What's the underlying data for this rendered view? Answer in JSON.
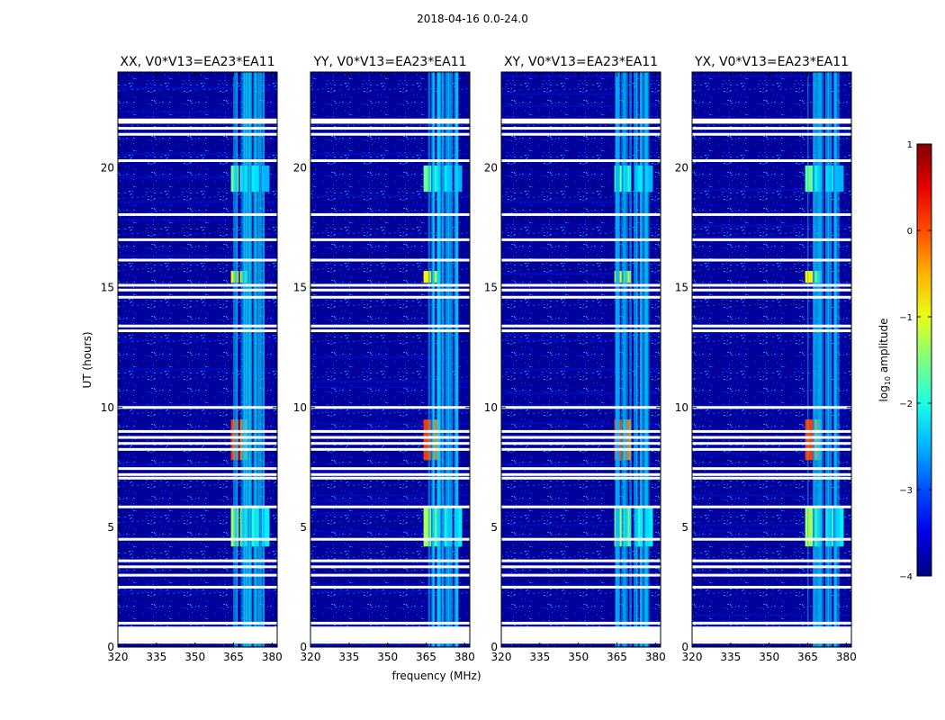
{
  "figure": {
    "suptitle": "2018-04-16 0.0-24.0"
  },
  "chart_data": {
    "type": "heatmap",
    "panels": [
      {
        "title": "XX, V0*V13=EA23*EA11"
      },
      {
        "title": "YY, V0*V13=EA23*EA11"
      },
      {
        "title": "XY, V0*V13=EA23*EA11"
      },
      {
        "title": "YX, V0*V13=EA23*EA11"
      }
    ],
    "xlabel": "frequency (MHz)",
    "ylabel": "UT (hours)",
    "xlim": [
      320,
      382
    ],
    "ylim": [
      0,
      24
    ],
    "xticks": [
      320,
      335,
      350,
      365,
      380
    ],
    "yticks": [
      0,
      5,
      10,
      15,
      20
    ],
    "colorbar": {
      "label": "log10 amplitude",
      "label_main": "log",
      "label_sub": "10",
      "label_rest": " amplitude",
      "range": [
        -4,
        1
      ],
      "ticks": [
        -4,
        -3,
        -2,
        -1,
        0,
        1
      ],
      "tick_labels": [
        "−4",
        "−3",
        "−2",
        "−1",
        "0",
        "1"
      ],
      "colormap": "jet"
    },
    "flagged_hours": [
      0.2,
      0.55,
      0.8,
      1.0,
      2.5,
      3.0,
      3.35,
      3.6,
      4.5,
      5.85,
      7.05,
      7.2,
      7.45,
      8.25,
      8.5,
      8.75,
      9.0,
      10.0,
      13.2,
      13.4,
      14.6,
      14.9,
      15.1,
      16.15,
      17.0,
      18.05,
      20.3,
      21.4,
      21.65,
      21.9,
      22.0
    ],
    "features": [
      {
        "name": "rfi-band-5h",
        "f_start": 364,
        "f_end": 381,
        "t_start": 4.2,
        "t_end": 5.8,
        "level": -1.3
      },
      {
        "name": "rfi-band-8.5h",
        "f_start": 364,
        "f_end": 371,
        "t_start": 7.8,
        "t_end": 9.5,
        "level": 0.1
      },
      {
        "name": "rfi-band-15.5h",
        "f_start": 364,
        "f_end": 370,
        "t_start": 15.2,
        "t_end": 15.7,
        "level": -0.8
      },
      {
        "name": "rfi-band-19.5h",
        "f_start": 364,
        "f_end": 378,
        "t_start": 19.0,
        "t_end": 20.1,
        "level": -1.6
      },
      {
        "name": "persistent-rfi",
        "f_start": 364,
        "f_end": 377,
        "t_start": 0.0,
        "t_end": 24.0,
        "level": -2.6
      }
    ]
  },
  "colors": {
    "background": "#00008f",
    "flag": "#ffffff"
  }
}
